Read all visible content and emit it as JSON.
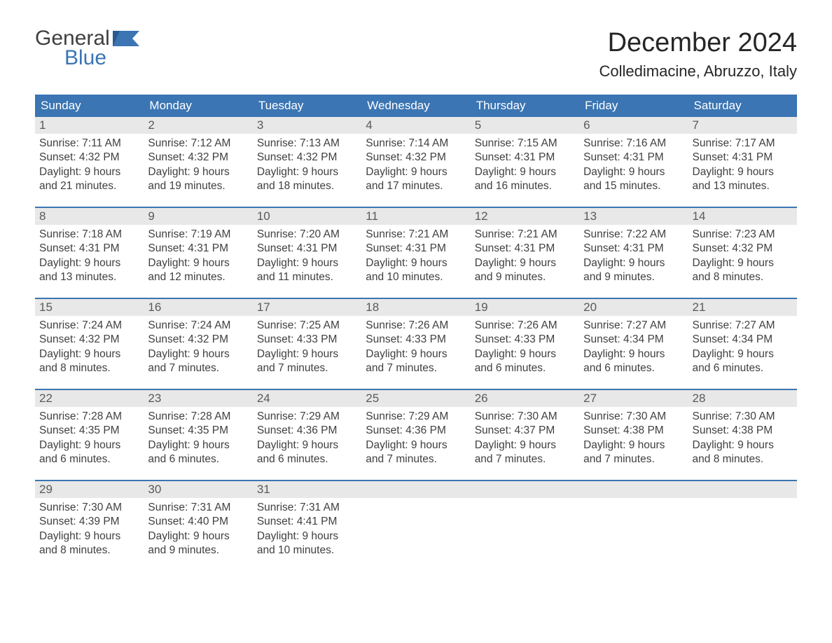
{
  "logo": {
    "word1": "General",
    "word2": "Blue"
  },
  "title": "December 2024",
  "location": "Colledimacine, Abruzzo, Italy",
  "colors": {
    "header_bg": "#3b75b3",
    "header_text": "#ffffff",
    "daynum_bg": "#e8e8e8",
    "text": "#404040",
    "logo_blue": "#3b75b3"
  },
  "day_headers": [
    "Sunday",
    "Monday",
    "Tuesday",
    "Wednesday",
    "Thursday",
    "Friday",
    "Saturday"
  ],
  "weeks": [
    [
      {
        "n": "1",
        "sunrise": "Sunrise: 7:11 AM",
        "sunset": "Sunset: 4:32 PM",
        "day1": "Daylight: 9 hours",
        "day2": "and 21 minutes."
      },
      {
        "n": "2",
        "sunrise": "Sunrise: 7:12 AM",
        "sunset": "Sunset: 4:32 PM",
        "day1": "Daylight: 9 hours",
        "day2": "and 19 minutes."
      },
      {
        "n": "3",
        "sunrise": "Sunrise: 7:13 AM",
        "sunset": "Sunset: 4:32 PM",
        "day1": "Daylight: 9 hours",
        "day2": "and 18 minutes."
      },
      {
        "n": "4",
        "sunrise": "Sunrise: 7:14 AM",
        "sunset": "Sunset: 4:32 PM",
        "day1": "Daylight: 9 hours",
        "day2": "and 17 minutes."
      },
      {
        "n": "5",
        "sunrise": "Sunrise: 7:15 AM",
        "sunset": "Sunset: 4:31 PM",
        "day1": "Daylight: 9 hours",
        "day2": "and 16 minutes."
      },
      {
        "n": "6",
        "sunrise": "Sunrise: 7:16 AM",
        "sunset": "Sunset: 4:31 PM",
        "day1": "Daylight: 9 hours",
        "day2": "and 15 minutes."
      },
      {
        "n": "7",
        "sunrise": "Sunrise: 7:17 AM",
        "sunset": "Sunset: 4:31 PM",
        "day1": "Daylight: 9 hours",
        "day2": "and 13 minutes."
      }
    ],
    [
      {
        "n": "8",
        "sunrise": "Sunrise: 7:18 AM",
        "sunset": "Sunset: 4:31 PM",
        "day1": "Daylight: 9 hours",
        "day2": "and 13 minutes."
      },
      {
        "n": "9",
        "sunrise": "Sunrise: 7:19 AM",
        "sunset": "Sunset: 4:31 PM",
        "day1": "Daylight: 9 hours",
        "day2": "and 12 minutes."
      },
      {
        "n": "10",
        "sunrise": "Sunrise: 7:20 AM",
        "sunset": "Sunset: 4:31 PM",
        "day1": "Daylight: 9 hours",
        "day2": "and 11 minutes."
      },
      {
        "n": "11",
        "sunrise": "Sunrise: 7:21 AM",
        "sunset": "Sunset: 4:31 PM",
        "day1": "Daylight: 9 hours",
        "day2": "and 10 minutes."
      },
      {
        "n": "12",
        "sunrise": "Sunrise: 7:21 AM",
        "sunset": "Sunset: 4:31 PM",
        "day1": "Daylight: 9 hours",
        "day2": "and 9 minutes."
      },
      {
        "n": "13",
        "sunrise": "Sunrise: 7:22 AM",
        "sunset": "Sunset: 4:31 PM",
        "day1": "Daylight: 9 hours",
        "day2": "and 9 minutes."
      },
      {
        "n": "14",
        "sunrise": "Sunrise: 7:23 AM",
        "sunset": "Sunset: 4:32 PM",
        "day1": "Daylight: 9 hours",
        "day2": "and 8 minutes."
      }
    ],
    [
      {
        "n": "15",
        "sunrise": "Sunrise: 7:24 AM",
        "sunset": "Sunset: 4:32 PM",
        "day1": "Daylight: 9 hours",
        "day2": "and 8 minutes."
      },
      {
        "n": "16",
        "sunrise": "Sunrise: 7:24 AM",
        "sunset": "Sunset: 4:32 PM",
        "day1": "Daylight: 9 hours",
        "day2": "and 7 minutes."
      },
      {
        "n": "17",
        "sunrise": "Sunrise: 7:25 AM",
        "sunset": "Sunset: 4:33 PM",
        "day1": "Daylight: 9 hours",
        "day2": "and 7 minutes."
      },
      {
        "n": "18",
        "sunrise": "Sunrise: 7:26 AM",
        "sunset": "Sunset: 4:33 PM",
        "day1": "Daylight: 9 hours",
        "day2": "and 7 minutes."
      },
      {
        "n": "19",
        "sunrise": "Sunrise: 7:26 AM",
        "sunset": "Sunset: 4:33 PM",
        "day1": "Daylight: 9 hours",
        "day2": "and 6 minutes."
      },
      {
        "n": "20",
        "sunrise": "Sunrise: 7:27 AM",
        "sunset": "Sunset: 4:34 PM",
        "day1": "Daylight: 9 hours",
        "day2": "and 6 minutes."
      },
      {
        "n": "21",
        "sunrise": "Sunrise: 7:27 AM",
        "sunset": "Sunset: 4:34 PM",
        "day1": "Daylight: 9 hours",
        "day2": "and 6 minutes."
      }
    ],
    [
      {
        "n": "22",
        "sunrise": "Sunrise: 7:28 AM",
        "sunset": "Sunset: 4:35 PM",
        "day1": "Daylight: 9 hours",
        "day2": "and 6 minutes."
      },
      {
        "n": "23",
        "sunrise": "Sunrise: 7:28 AM",
        "sunset": "Sunset: 4:35 PM",
        "day1": "Daylight: 9 hours",
        "day2": "and 6 minutes."
      },
      {
        "n": "24",
        "sunrise": "Sunrise: 7:29 AM",
        "sunset": "Sunset: 4:36 PM",
        "day1": "Daylight: 9 hours",
        "day2": "and 6 minutes."
      },
      {
        "n": "25",
        "sunrise": "Sunrise: 7:29 AM",
        "sunset": "Sunset: 4:36 PM",
        "day1": "Daylight: 9 hours",
        "day2": "and 7 minutes."
      },
      {
        "n": "26",
        "sunrise": "Sunrise: 7:30 AM",
        "sunset": "Sunset: 4:37 PM",
        "day1": "Daylight: 9 hours",
        "day2": "and 7 minutes."
      },
      {
        "n": "27",
        "sunrise": "Sunrise: 7:30 AM",
        "sunset": "Sunset: 4:38 PM",
        "day1": "Daylight: 9 hours",
        "day2": "and 7 minutes."
      },
      {
        "n": "28",
        "sunrise": "Sunrise: 7:30 AM",
        "sunset": "Sunset: 4:38 PM",
        "day1": "Daylight: 9 hours",
        "day2": "and 8 minutes."
      }
    ],
    [
      {
        "n": "29",
        "sunrise": "Sunrise: 7:30 AM",
        "sunset": "Sunset: 4:39 PM",
        "day1": "Daylight: 9 hours",
        "day2": "and 8 minutes."
      },
      {
        "n": "30",
        "sunrise": "Sunrise: 7:31 AM",
        "sunset": "Sunset: 4:40 PM",
        "day1": "Daylight: 9 hours",
        "day2": "and 9 minutes."
      },
      {
        "n": "31",
        "sunrise": "Sunrise: 7:31 AM",
        "sunset": "Sunset: 4:41 PM",
        "day1": "Daylight: 9 hours",
        "day2": "and 10 minutes."
      },
      null,
      null,
      null,
      null
    ]
  ]
}
